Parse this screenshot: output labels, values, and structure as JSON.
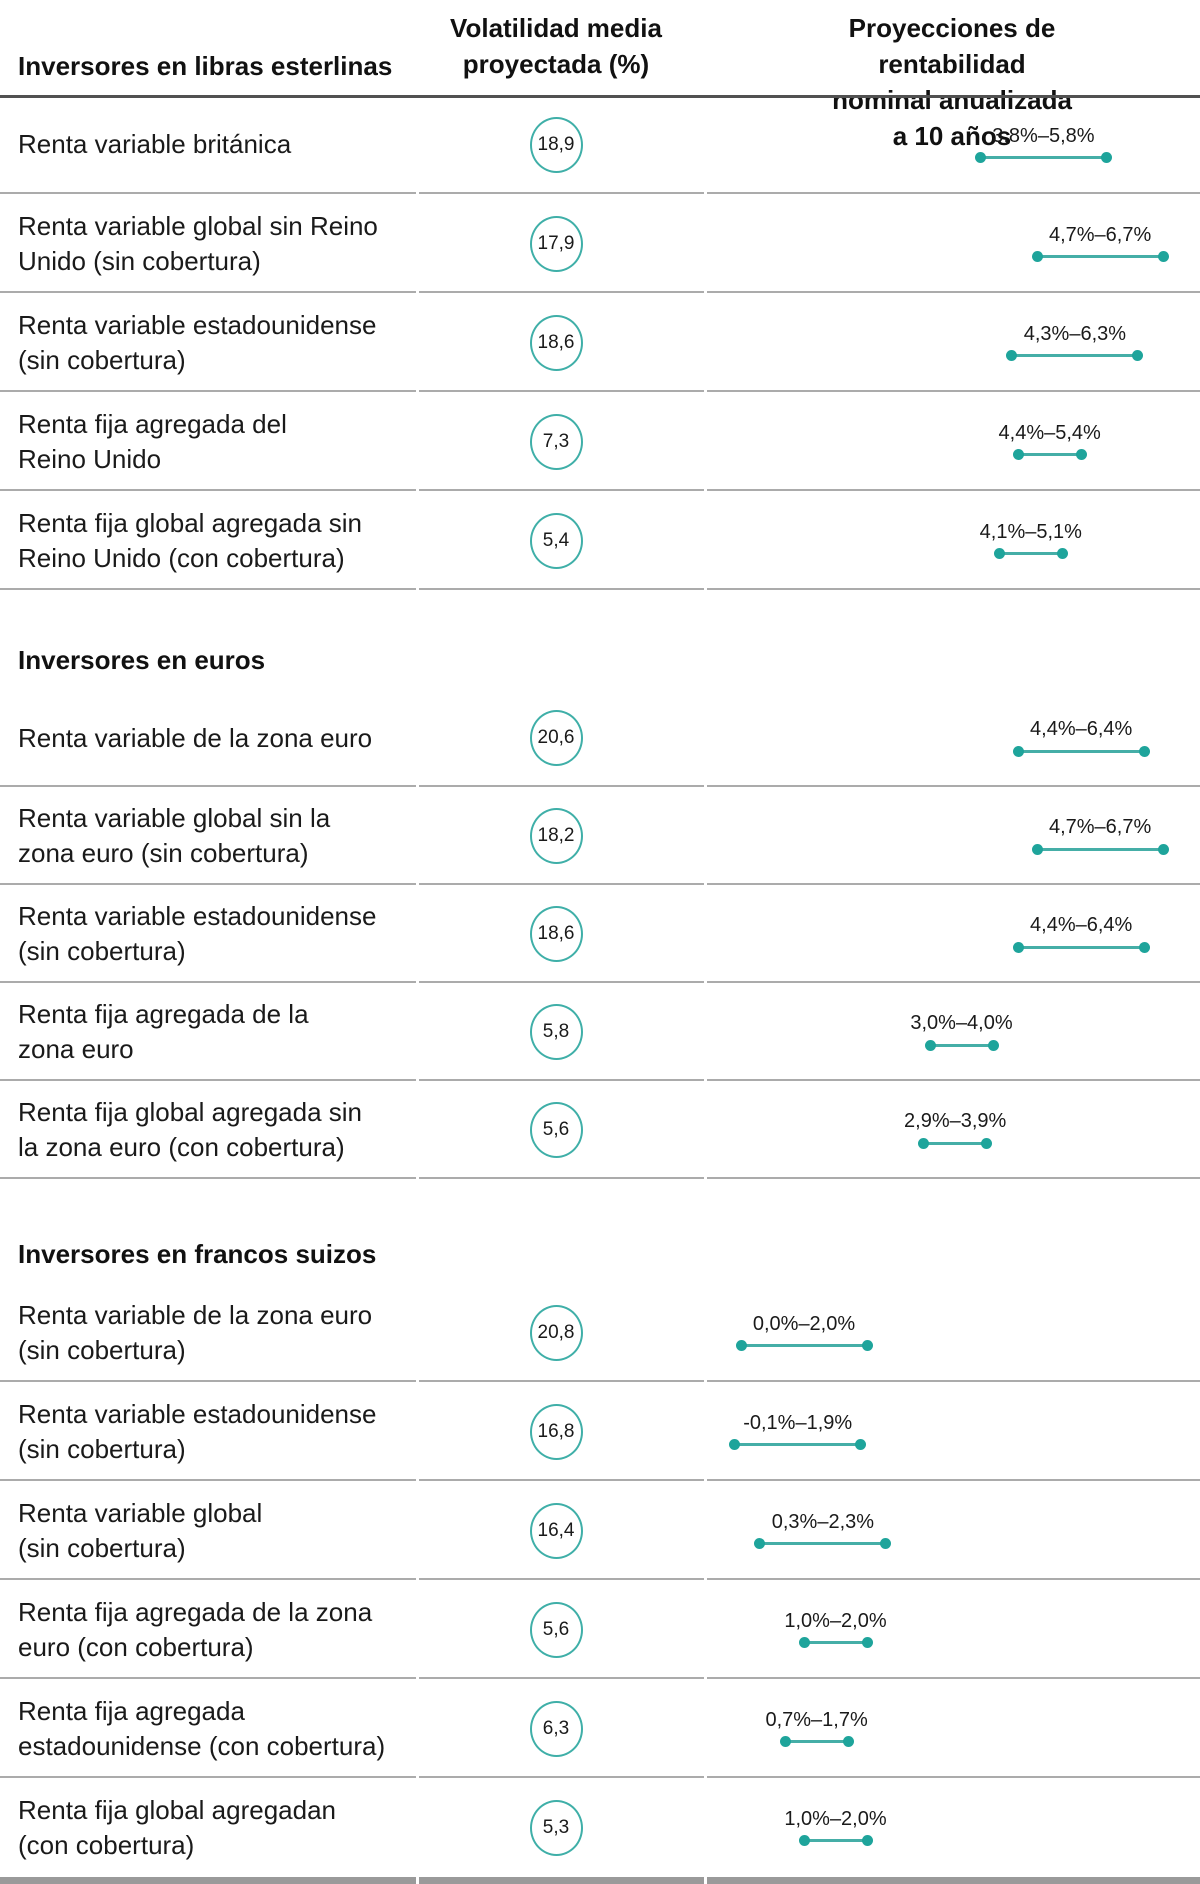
{
  "chart_data": {
    "type": "table",
    "subtype": "dot-range",
    "value_unit": "%",
    "x_range_pct": [
      -0.6,
      7.3
    ],
    "header": {
      "col1": "Inversores en libras esterlinas",
      "col2": [
        "Volatilidad media",
        "proyectada (%)"
      ],
      "col3": [
        "Proyecciones de rentabilidad",
        "nominal anualizada a 10 años"
      ]
    },
    "sections": [
      {
        "title": "Inversores en libras esterlinas",
        "title_shown_in_band": false,
        "rows": [
          {
            "label_lines": [
              "Renta variable británica"
            ],
            "volatility": "18,9",
            "range_label": "3,8%–5,8%",
            "min": 3.8,
            "max": 5.8
          },
          {
            "label_lines": [
              "Renta variable global sin Reino",
              "Unido (sin cobertura)"
            ],
            "volatility": "17,9",
            "range_label": "4,7%–6,7%",
            "min": 4.7,
            "max": 6.7
          },
          {
            "label_lines": [
              "Renta variable estadounidense",
              "(sin cobertura)"
            ],
            "volatility": "18,6",
            "range_label": "4,3%–6,3%",
            "min": 4.3,
            "max": 6.3
          },
          {
            "label_lines": [
              "Renta fija agregada del",
              "Reino Unido"
            ],
            "volatility": "7,3",
            "range_label": "4,4%–5,4%",
            "min": 4.4,
            "max": 5.4
          },
          {
            "label_lines": [
              "Renta fija global agregada sin",
              "Reino Unido (con cobertura)"
            ],
            "volatility": "5,4",
            "range_label": "4,1%–5,1%",
            "min": 4.1,
            "max": 5.1
          }
        ]
      },
      {
        "title": "Inversores en euros",
        "title_shown_in_band": true,
        "rows": [
          {
            "label_lines": [
              "Renta variable de la zona euro"
            ],
            "volatility": "20,6",
            "range_label": "4,4%–6,4%",
            "min": 4.4,
            "max": 6.4
          },
          {
            "label_lines": [
              "Renta variable global sin la",
              "zona euro (sin cobertura)"
            ],
            "volatility": "18,2",
            "range_label": "4,7%–6,7%",
            "min": 4.7,
            "max": 6.7
          },
          {
            "label_lines": [
              "Renta variable estadounidense",
              "(sin cobertura)"
            ],
            "volatility": "18,6",
            "range_label": "4,4%–6,4%",
            "min": 4.4,
            "max": 6.4
          },
          {
            "label_lines": [
              "Renta fija agregada de la",
              "zona euro"
            ],
            "volatility": "5,8",
            "range_label": "3,0%–4,0%",
            "min": 3.0,
            "max": 4.0
          },
          {
            "label_lines": [
              "Renta fija global agregada sin",
              "la zona euro (con cobertura)"
            ],
            "volatility": "5,6",
            "range_label": "2,9%–3,9%",
            "min": 2.9,
            "max": 3.9
          }
        ]
      },
      {
        "title": "Inversores en francos suizos",
        "title_shown_in_band": true,
        "rows": [
          {
            "label_lines": [
              "Renta variable de la zona euro",
              "(sin cobertura)"
            ],
            "volatility": "20,8",
            "range_label": "0,0%–2,0%",
            "min": 0.0,
            "max": 2.0
          },
          {
            "label_lines": [
              "Renta variable estadounidense",
              "(sin cobertura)"
            ],
            "volatility": "16,8",
            "range_label": "-0,1%–1,9%",
            "min": -0.1,
            "max": 1.9
          },
          {
            "label_lines": [
              "Renta variable global",
              "(sin cobertura)"
            ],
            "volatility": "16,4",
            "range_label": "0,3%–2,3%",
            "min": 0.3,
            "max": 2.3
          },
          {
            "label_lines": [
              "Renta fija agregada de la zona",
              "euro (con cobertura)"
            ],
            "volatility": "5,6",
            "range_label": "1,0%–2,0%",
            "min": 1.0,
            "max": 2.0
          },
          {
            "label_lines": [
              "Renta fija agregada",
              "estadounidense (con cobertura)"
            ],
            "volatility": "6,3",
            "range_label": "0,7%–1,7%",
            "min": 0.7,
            "max": 1.7
          },
          {
            "label_lines": [
              "Renta fija global agregadan",
              "(con cobertura)"
            ],
            "volatility": "5,3",
            "range_label": "1,0%–2,0%",
            "min": 1.0,
            "max": 2.0
          }
        ]
      }
    ],
    "colors": {
      "accent_dot": "#1ea49b",
      "accent_line": "#45aea7",
      "circle_stroke": "#3fafa8",
      "row_divider": "#ababab",
      "header_rule": "#515151",
      "bottom_rule": "#9a9a9a",
      "text": "#1a1a1a"
    }
  }
}
